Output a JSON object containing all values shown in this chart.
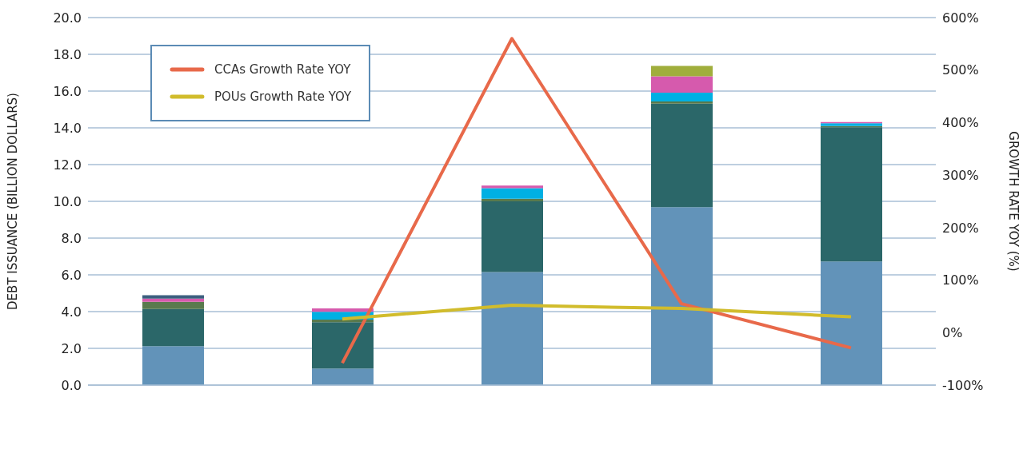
{
  "chart_data": {
    "type": "bar",
    "stacked": true,
    "categories": [
      null,
      null,
      null,
      null,
      null
    ],
    "ylabel": "DEBT ISSUANCE (BILLION DOLLARS)",
    "y2label": "GROWTH RATE YOY (%)",
    "ylim": [
      0,
      20
    ],
    "yticks": [
      {
        "value": 0,
        "label": "0.0"
      },
      {
        "value": 2,
        "label": "2.0"
      },
      {
        "value": 4,
        "label": "4.0"
      },
      {
        "value": 6,
        "label": "6.0"
      },
      {
        "value": 8,
        "label": "8.0"
      },
      {
        "value": 10,
        "label": "10.0"
      },
      {
        "value": 12,
        "label": "12.0"
      },
      {
        "value": 14,
        "label": "14.0"
      },
      {
        "value": 16,
        "label": "16.0"
      },
      {
        "value": 18,
        "label": "18.0"
      },
      {
        "value": 20,
        "label": "20.0"
      }
    ],
    "y2lim": [
      -100,
      600
    ],
    "y2ticks": [
      {
        "value": -100,
        "label": "-100%"
      },
      {
        "value": 0,
        "label": "0%"
      },
      {
        "value": 100,
        "label": "100%"
      },
      {
        "value": 200,
        "label": "200%"
      },
      {
        "value": 300,
        "label": "300%"
      },
      {
        "value": 400,
        "label": "400%"
      },
      {
        "value": 500,
        "label": "500%"
      },
      {
        "value": 600,
        "label": "600%"
      }
    ],
    "grid": "y",
    "legend": "top left",
    "marker": "none",
    "series": [
      {
        "color": "#6293b9",
        "values": [
          2.12,
          0.9,
          6.15,
          9.68,
          6.73
        ]
      },
      {
        "color": "#2b6769",
        "values": [
          2.02,
          2.52,
          3.85,
          5.64,
          7.3
        ]
      },
      {
        "color": "#597a4d",
        "values": [
          0.39,
          0.14,
          0.14,
          0.11,
          0.07
        ]
      },
      {
        "color": "#00b0e3",
        "values": [
          null,
          0.43,
          0.58,
          0.48,
          0.15
        ]
      },
      {
        "color": "#d65aad",
        "values": [
          0.18,
          0.18,
          0.14,
          0.89,
          0.07
        ]
      },
      {
        "color": "#a0ae3c",
        "values": [
          null,
          null,
          null,
          0.57,
          null
        ]
      },
      {
        "color": "#3c5f7f",
        "values": [
          0.18,
          null,
          null,
          null,
          null
        ]
      },
      {
        "type": "line",
        "axis": "y2",
        "name": "CCAs Growth Rate YOY",
        "color": "#e8694a",
        "values": [
          null,
          -58,
          560,
          55,
          -29
        ]
      },
      {
        "type": "line",
        "axis": "y2",
        "name": "POUs Growth Rate YOY",
        "color": "#d1bc2c",
        "values": [
          null,
          26,
          52,
          46,
          30
        ]
      }
    ]
  }
}
